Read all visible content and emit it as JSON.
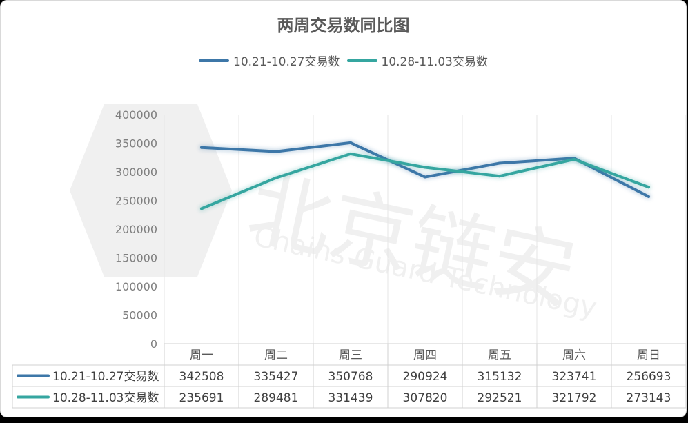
{
  "chart_data": {
    "type": "line",
    "title": "两周交易数同比图",
    "categories": [
      "周一",
      "周二",
      "周三",
      "周四",
      "周五",
      "周六",
      "周日"
    ],
    "series": [
      {
        "name": "10.21-10.27交易数",
        "color": "#3d77a8",
        "values": [
          342508,
          335427,
          350768,
          290924,
          315132,
          323741,
          256693
        ]
      },
      {
        "name": "10.28-11.03交易数",
        "color": "#35a6a0",
        "values": [
          235691,
          289481,
          331439,
          307820,
          292521,
          321792,
          273143
        ]
      }
    ],
    "ylim": [
      0,
      400000
    ],
    "yticks": [
      0,
      50000,
      100000,
      150000,
      200000,
      250000,
      300000,
      350000,
      400000
    ],
    "legend": "top-center",
    "grid": "vertical",
    "data_table": true
  },
  "watermark": {
    "cn": "北京链安",
    "en": "Chains Guard Technology"
  }
}
